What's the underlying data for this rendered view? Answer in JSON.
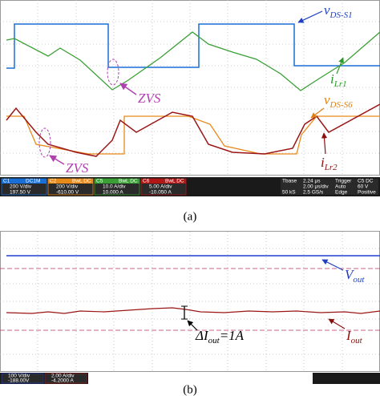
{
  "panel_a": {
    "caption": "(a)",
    "labels": {
      "vds_s1": {
        "main": "v",
        "sub": "DS-S1"
      },
      "ilr1": {
        "main": "i",
        "sub": "Lr1"
      },
      "vds_s6": {
        "main": "v",
        "sub": "DS-S6"
      },
      "ilr2": {
        "main": "i",
        "sub": "Lr2"
      }
    },
    "zvs": [
      "ZVS",
      "ZVS"
    ],
    "channels": [
      {
        "name": "C1",
        "coupling": "DC1M",
        "scale": "200 V/div",
        "offset": "197.50 V"
      },
      {
        "name": "C2",
        "coupling": "BwL DC",
        "scale": "200 V/div",
        "offset": "-610.00 V"
      },
      {
        "name": "C5",
        "coupling": "BwL DC",
        "scale": "10.0 A/div",
        "offset": "10.000 A"
      },
      {
        "name": "C6",
        "coupling": "BwL DC",
        "scale": "5.00 A/div",
        "offset": "-10.050 A"
      }
    ],
    "timebase": [
      [
        "Tbase",
        "2.24 μs",
        "Trigger",
        "C5 DC"
      ],
      [
        "",
        "2.00 μs/div",
        "Auto",
        "60 V"
      ],
      [
        "50 kS",
        "2.5 GS/s",
        "Edge",
        "Positive"
      ]
    ]
  },
  "panel_b": {
    "caption": "(b)",
    "labels": {
      "vout": {
        "main": "V",
        "sub": "out"
      },
      "iout": {
        "main": "I",
        "sub": "out"
      },
      "delta": {
        "main": "ΔI",
        "sub": "out",
        "rest": "=1A"
      }
    },
    "channels": [
      {
        "scale": "100 V/div",
        "offset": "-188.00V"
      },
      {
        "scale": "2.00 A/div",
        "offset": "-4.2000 A"
      }
    ]
  }
}
